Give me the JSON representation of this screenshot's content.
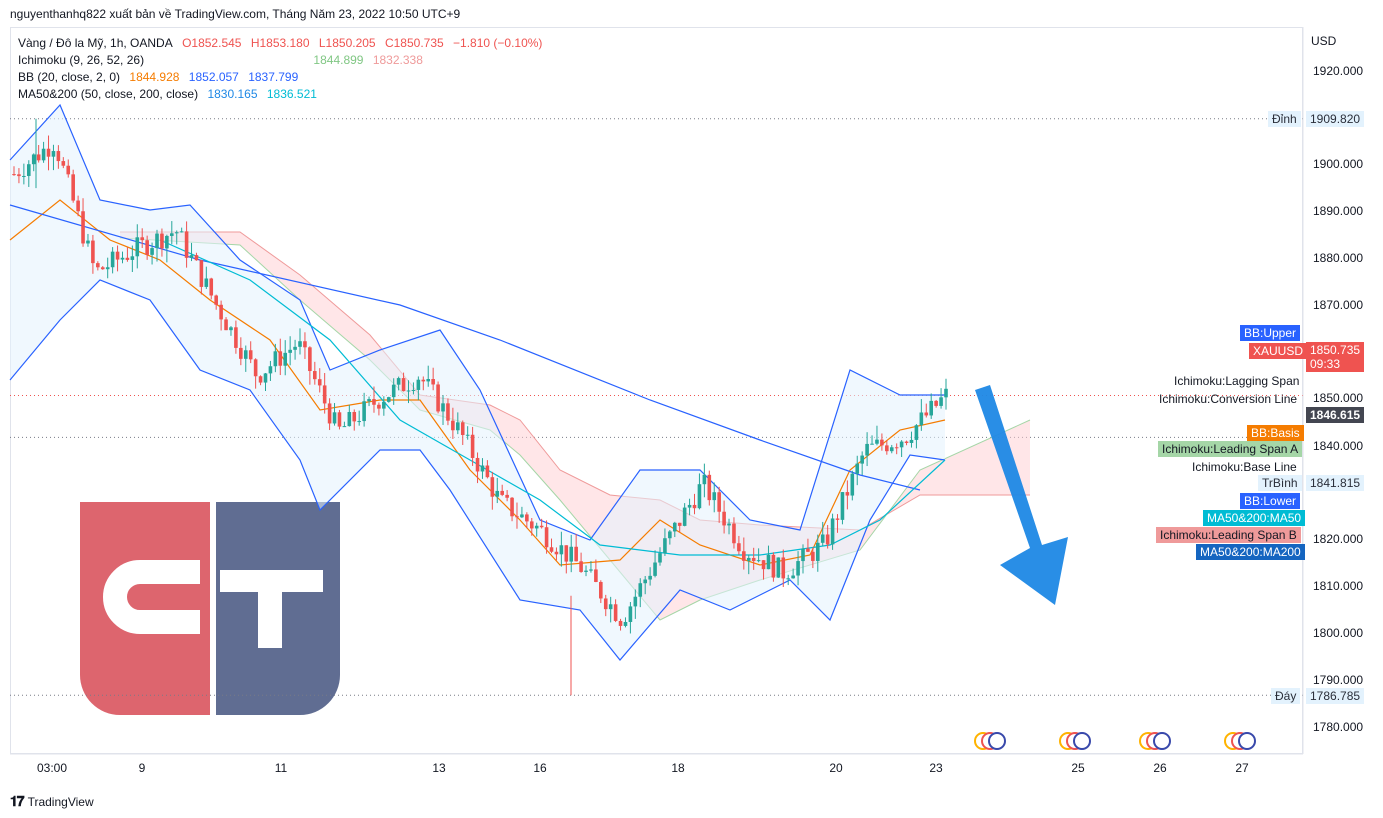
{
  "header": {
    "publish_line": "nguyenthanhq822 xuất bản về TradingView.com, Tháng Năm 23, 2022 10:50 UTC+9"
  },
  "legend": {
    "symbol": "Vàng / Đô la Mỹ, 1h, OANDA",
    "ohlc": {
      "o": "O1852.545",
      "h": "H1853.180",
      "l": "L1850.205",
      "c": "C1850.735",
      "chg": "−1.810 (−0.10%)"
    },
    "ichimoku": {
      "label": "Ichimoku (9, 26, 52, 26)",
      "v1": "1844.899",
      "v2": "1832.338"
    },
    "bb": {
      "label": "BB (20, close, 2, 0)",
      "v1": "1844.928",
      "v2": "1852.057",
      "v3": "1837.799"
    },
    "ma": {
      "label": "MA50&200 (50, close, 200, close)",
      "v1": "1830.165",
      "v2": "1836.521"
    }
  },
  "axis": {
    "unit": "USD",
    "x_ticks": [
      "03:00",
      "9",
      "11",
      "13",
      "16",
      "18",
      "20",
      "23",
      "25",
      "26",
      "27"
    ],
    "y_ticks": [
      "1920.000",
      "1900.000",
      "1890.000",
      "1880.000",
      "1870.000",
      "1850.000",
      "1840.000",
      "1820.000",
      "1810.000",
      "1800.000",
      "1790.000",
      "1780.000"
    ]
  },
  "price_tags": {
    "high_label": "Đỉnh",
    "high_value": "1909.820",
    "low_label": "Đáy",
    "low_value": "1786.785",
    "bb_upper": "BB:Upper",
    "symbol": "XAUUSD",
    "last_price": "1850.735",
    "countdown": "09:33",
    "lagging_span": "Ichimoku:Lagging Span",
    "conversion_line": "Ichimoku:Conversion Line",
    "conversion_value": "1846.615",
    "bb_basis": "BB:Basis",
    "leading_span_a": "Ichimoku:Leading Span A",
    "base_line": "Ichimoku:Base Line",
    "trbinh_label": "TrBình",
    "trbinh_value": "1841.815",
    "bb_lower": "BB:Lower",
    "ma50": "MA50&200:MA50",
    "leading_span_b": "Ichimoku:Leading Span B",
    "ma200": "MA50&200:MA200"
  },
  "footer": {
    "brand": "TradingView"
  },
  "colors": {
    "up": "#26a69a",
    "down": "#ef5350",
    "bb_band": "#2962ff",
    "bb_basis": "#f57c00",
    "ma50": "#00bcd4",
    "ma200": "#2962ff",
    "span_a": "#a5d6a7",
    "span_b": "#ef9a9a",
    "arrow": "#1e88e5",
    "logo_red": "#d9545e",
    "logo_blue": "#4f5d86"
  },
  "chart_data": {
    "type": "candlestick",
    "symbol": "XAUUSD",
    "interval": "1h",
    "ylim": [
      1775,
      1926
    ],
    "x_ticks": [
      "03:00",
      "9",
      "11",
      "13",
      "16",
      "18",
      "20",
      "23",
      "25",
      "26",
      "27"
    ],
    "highest": 1909.82,
    "lowest": 1786.785,
    "close_path": [
      {
        "x": "03:00",
        "close": 1898
      },
      {
        "x": "03:00+",
        "close": 1905
      },
      {
        "x": "9",
        "close": 1877
      },
      {
        "x": "9+",
        "close": 1882
      },
      {
        "x": "9++",
        "close": 1886
      },
      {
        "x": "9+++",
        "close": 1870
      },
      {
        "x": "11",
        "close": 1855
      },
      {
        "x": "11+",
        "close": 1862
      },
      {
        "x": "11++",
        "close": 1843
      },
      {
        "x": "11+++",
        "close": 1850
      },
      {
        "x": "11++++",
        "close": 1855
      },
      {
        "x": "13",
        "close": 1843
      },
      {
        "x": "13+",
        "close": 1828
      },
      {
        "x": "13++",
        "close": 1822
      },
      {
        "x": "16",
        "close": 1814
      },
      {
        "x": "16+",
        "close": 1803
      },
      {
        "x": "16++",
        "close": 1818
      },
      {
        "x": "18",
        "close": 1832
      },
      {
        "x": "18+",
        "close": 1818
      },
      {
        "x": "18++",
        "close": 1813
      },
      {
        "x": "18+++",
        "close": 1819
      },
      {
        "x": "20",
        "close": 1839
      },
      {
        "x": "20+",
        "close": 1842
      },
      {
        "x": "23",
        "close": 1850.735
      }
    ],
    "annotation": "down arrow projecting decline"
  }
}
